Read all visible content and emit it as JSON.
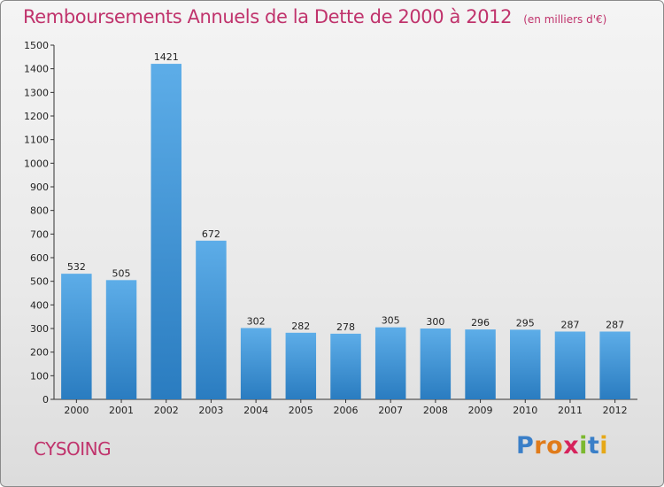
{
  "header": {
    "title": "Remboursements Annuels de la Dette de 2000 à 2012",
    "unit": "(en milliers d'€)"
  },
  "footer": {
    "place": "CYSOING",
    "logo_letters": [
      "P",
      "r",
      "o",
      "x",
      "i",
      "t",
      "i"
    ],
    "logo_colors": [
      "#3a7fc8",
      "#e07b1a",
      "#e07b1a",
      "#d6235c",
      "#7cb82f",
      "#3a7fc8",
      "#e6a818"
    ]
  },
  "colors": {
    "bar_light": "#5dade8",
    "bar_dark": "#2a7cc0",
    "title": "#c0336c"
  },
  "chart_data": {
    "type": "bar",
    "categories": [
      "2000",
      "2001",
      "2002",
      "2003",
      "2004",
      "2005",
      "2006",
      "2007",
      "2008",
      "2009",
      "2010",
      "2011",
      "2012"
    ],
    "values": [
      532,
      505,
      1421,
      672,
      302,
      282,
      278,
      305,
      300,
      296,
      295,
      287,
      287
    ],
    "ylim": [
      0,
      1500
    ],
    "yticks": [
      0,
      100,
      200,
      300,
      400,
      500,
      600,
      700,
      800,
      900,
      1000,
      1100,
      1200,
      1300,
      1400,
      1500
    ],
    "grid": false,
    "data_labels": true
  }
}
